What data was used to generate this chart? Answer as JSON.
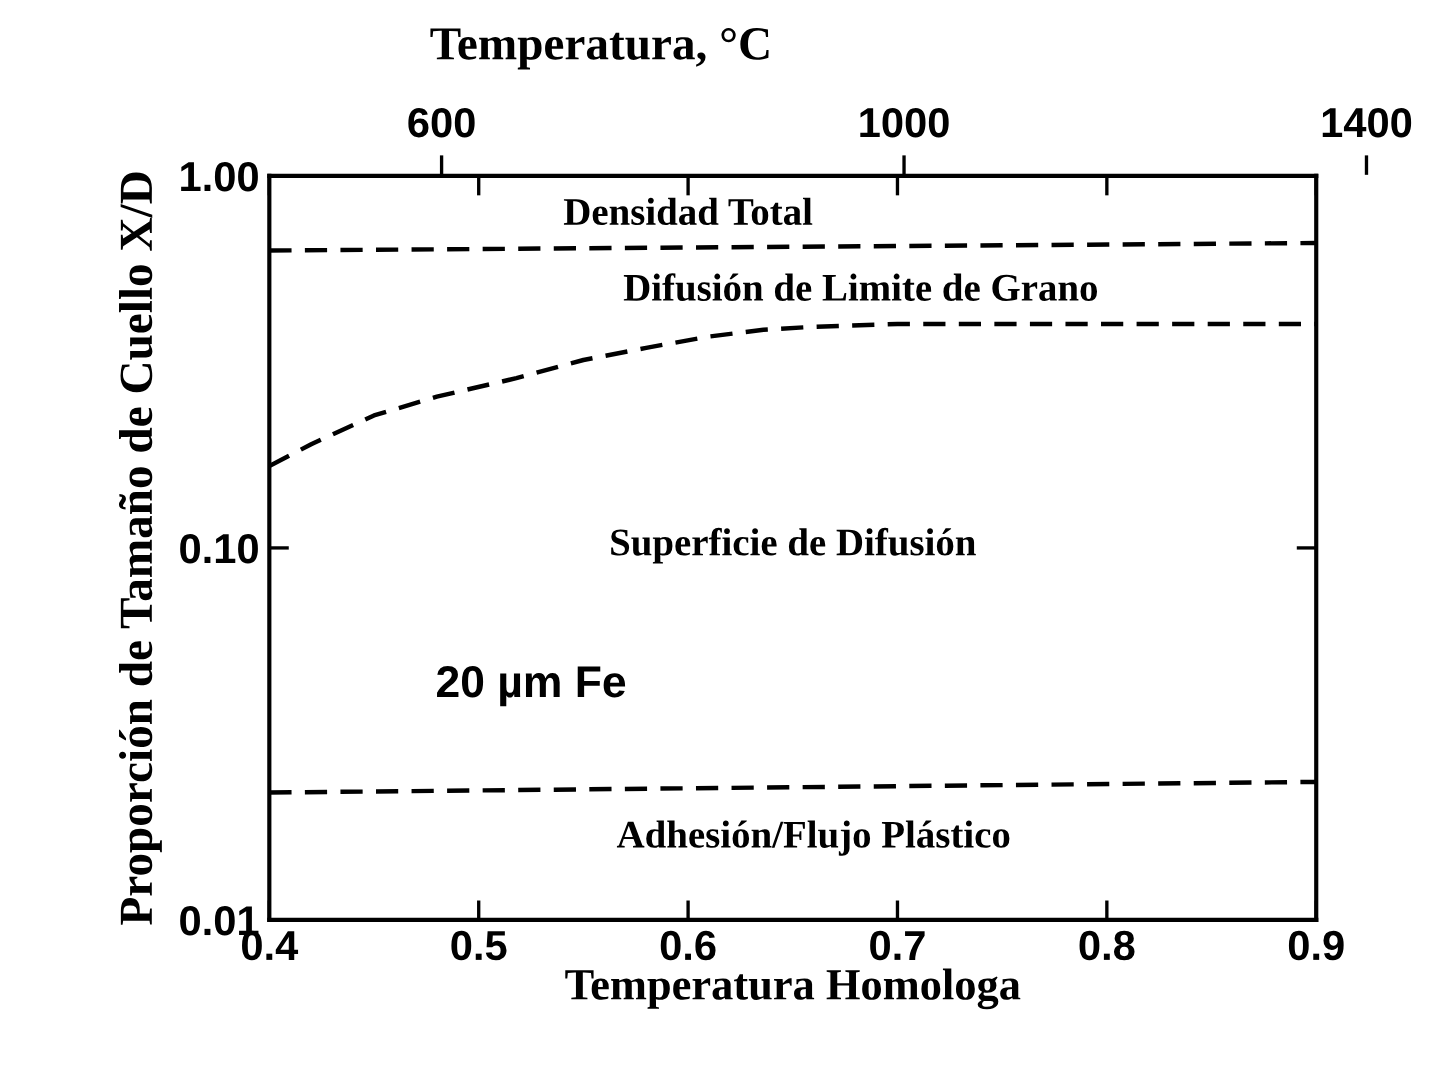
{
  "chart_data": {
    "type": "line",
    "xlabel": "Temperatura Homologa",
    "ylabel": "Proporción de Tamaño de Cuello X/D",
    "x2label": "Temperatura, °C",
    "xlim": [
      0.4,
      0.9
    ],
    "xticks": [
      0.4,
      0.5,
      0.6,
      0.7,
      0.8,
      0.9
    ],
    "ylim": [
      0.01,
      1.0
    ],
    "yticks": [
      {
        "value": 0.01,
        "label": "0.01"
      },
      {
        "value": 0.1,
        "label": "0.10"
      },
      {
        "value": 1.0,
        "label": "1.00"
      }
    ],
    "log": "y",
    "x2lim": [
      451,
      1400
    ],
    "x2ticks": [
      600,
      1000,
      1400
    ],
    "line_style": "dashed",
    "marker": "none",
    "grid": false,
    "legend": false,
    "series": [
      {
        "color": "#000000",
        "x": [
          0.4,
          0.9
        ],
        "values": [
          0.63,
          0.66
        ]
      },
      {
        "color": "#000000",
        "x": [
          0.4,
          0.42,
          0.45,
          0.48,
          0.518,
          0.55,
          0.58,
          0.61,
          0.636,
          0.66,
          0.7,
          0.9
        ],
        "values": [
          0.166,
          0.19,
          0.227,
          0.255,
          0.286,
          0.32,
          0.345,
          0.37,
          0.386,
          0.393,
          0.4,
          0.4
        ]
      },
      {
        "color": "#000000",
        "x": [
          0.4,
          0.9
        ],
        "values": [
          0.022,
          0.0235
        ]
      }
    ],
    "annotations": [
      "Densidad Total",
      "Difusión de Limite de Grano",
      "Superficie de Difusión",
      "20 µm Fe",
      "Adhesión/Flujo Plástico"
    ]
  }
}
